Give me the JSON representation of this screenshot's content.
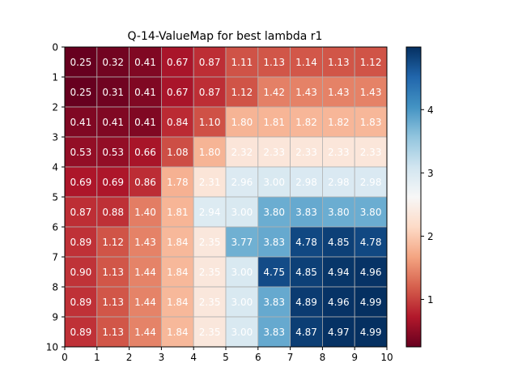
{
  "chart_data": {
    "type": "heatmap",
    "title": "Q-14-ValueMap for best lambda r1",
    "colormap": "RdBu",
    "x_ticks": [
      "0",
      "1",
      "2",
      "3",
      "4",
      "5",
      "6",
      "7",
      "8",
      "9",
      "10"
    ],
    "y_ticks": [
      "0",
      "1",
      "2",
      "3",
      "4",
      "5",
      "6",
      "7",
      "8",
      "9",
      "10"
    ],
    "colorbar": {
      "min": 0.25,
      "max": 4.99,
      "ticks": [
        "1",
        "2",
        "3",
        "4"
      ],
      "tick_values": [
        1,
        2,
        3,
        4
      ]
    },
    "grid": true,
    "values": [
      [
        "0.25",
        "0.32",
        "0.41",
        "0.67",
        "0.87",
        "1.11",
        "1.13",
        "1.14",
        "1.13",
        "1.12"
      ],
      [
        "0.25",
        "0.31",
        "0.41",
        "0.67",
        "0.87",
        "1.12",
        "1.42",
        "1.43",
        "1.43",
        "1.43"
      ],
      [
        "0.41",
        "0.41",
        "0.41",
        "0.84",
        "1.10",
        "1.80",
        "1.81",
        "1.82",
        "1.82",
        "1.83"
      ],
      [
        "0.53",
        "0.53",
        "0.66",
        "1.08",
        "1.80",
        "2.32",
        "2.33",
        "2.33",
        "2.33",
        "2.33"
      ],
      [
        "0.69",
        "0.69",
        "0.86",
        "1.78",
        "2.31",
        "2.96",
        "3.00",
        "2.98",
        "2.98",
        "2.98"
      ],
      [
        "0.87",
        "0.88",
        "1.40",
        "1.81",
        "2.94",
        "3.00",
        "3.80",
        "3.83",
        "3.80",
        "3.80"
      ],
      [
        "0.89",
        "1.12",
        "1.43",
        "1.84",
        "2.35",
        "3.77",
        "3.83",
        "4.78",
        "4.85",
        "4.78"
      ],
      [
        "0.90",
        "1.13",
        "1.44",
        "1.84",
        "2.35",
        "3.00",
        "4.75",
        "4.85",
        "4.94",
        "4.96"
      ],
      [
        "0.89",
        "1.13",
        "1.44",
        "1.84",
        "2.35",
        "3.00",
        "3.83",
        "4.89",
        "4.96",
        "4.99"
      ],
      [
        "0.89",
        "1.13",
        "1.44",
        "1.84",
        "2.35",
        "3.00",
        "3.83",
        "4.87",
        "4.97",
        "4.99"
      ]
    ]
  }
}
